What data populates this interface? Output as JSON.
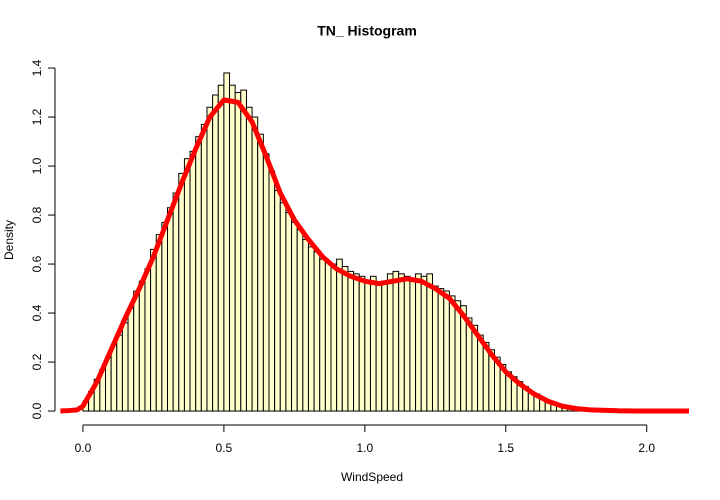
{
  "chart_data": {
    "type": "histogram",
    "title": "TN_ Histogram",
    "x_label": "WindSpeed",
    "y_label": "Density",
    "bins": [
      0,
      0.02,
      0.04,
      0.06,
      0.08,
      0.1,
      0.12,
      0.14,
      0.16,
      0.18,
      0.2,
      0.22,
      0.24,
      0.26,
      0.28,
      0.3,
      0.32,
      0.34,
      0.36,
      0.38,
      0.4,
      0.42,
      0.44,
      0.46,
      0.48,
      0.5,
      0.52,
      0.54,
      0.56,
      0.58,
      0.6,
      0.62,
      0.64,
      0.66,
      0.68,
      0.7,
      0.72,
      0.74,
      0.76,
      0.78,
      0.8,
      0.82,
      0.84,
      0.86,
      0.88,
      0.9,
      0.92,
      0.94,
      0.96,
      0.98,
      1,
      1.02,
      1.04,
      1.06,
      1.08,
      1.1,
      1.12,
      1.14,
      1.16,
      1.18,
      1.2,
      1.22,
      1.24,
      1.26,
      1.28,
      1.3,
      1.32,
      1.34,
      1.36,
      1.38,
      1.4,
      1.42,
      1.44,
      1.46,
      1.48,
      1.5,
      1.52,
      1.54,
      1.56,
      1.58,
      1.6,
      1.62,
      1.64,
      1.66,
      1.68,
      1.7,
      1.72,
      1.74,
      1.76,
      1.78,
      1.8
    ],
    "values": [
      0.04,
      0.08,
      0.13,
      0.17,
      0.22,
      0.27,
      0.31,
      0.36,
      0.42,
      0.49,
      0.53,
      0.58,
      0.66,
      0.72,
      0.77,
      0.83,
      0.89,
      0.97,
      1.03,
      1.06,
      1.12,
      1.17,
      1.24,
      1.29,
      1.33,
      1.38,
      1.33,
      1.3,
      1.31,
      1.24,
      1.2,
      1.13,
      1.05,
      0.98,
      0.9,
      0.85,
      0.81,
      0.77,
      0.74,
      0.7,
      0.67,
      0.65,
      0.62,
      0.61,
      0.6,
      0.62,
      0.59,
      0.57,
      0.56,
      0.55,
      0.53,
      0.55,
      0.52,
      0.53,
      0.56,
      0.57,
      0.56,
      0.55,
      0.54,
      0.56,
      0.55,
      0.56,
      0.51,
      0.5,
      0.49,
      0.47,
      0.45,
      0.43,
      0.38,
      0.35,
      0.31,
      0.28,
      0.25,
      0.22,
      0.19,
      0.16,
      0.14,
      0.12,
      0.1,
      0.08,
      0.07,
      0.05,
      0.04,
      0.03,
      0.02,
      0.02,
      0.01,
      0.01,
      0.005,
      0.003
    ],
    "color": "#ffffcc",
    "edge_color": "#000000",
    "density": {
      "color": "#ff0000",
      "x": [
        -0.08,
        -0.05,
        -0.02,
        0,
        0.05,
        0.1,
        0.15,
        0.2,
        0.25,
        0.3,
        0.35,
        0.4,
        0.45,
        0.5,
        0.55,
        0.6,
        0.65,
        0.7,
        0.75,
        0.8,
        0.85,
        0.9,
        0.95,
        1,
        1.05,
        1.1,
        1.15,
        1.2,
        1.25,
        1.3,
        1.35,
        1.4,
        1.45,
        1.5,
        1.55,
        1.6,
        1.65,
        1.7,
        1.75,
        1.8,
        1.9,
        2,
        2.15
      ],
      "values": [
        0,
        0.002,
        0.005,
        0.02,
        0.12,
        0.25,
        0.38,
        0.5,
        0.63,
        0.78,
        0.93,
        1.07,
        1.2,
        1.27,
        1.26,
        1.18,
        1.04,
        0.89,
        0.78,
        0.7,
        0.63,
        0.58,
        0.55,
        0.53,
        0.52,
        0.53,
        0.54,
        0.53,
        0.5,
        0.46,
        0.39,
        0.31,
        0.23,
        0.16,
        0.11,
        0.07,
        0.04,
        0.02,
        0.01,
        0.005,
        0.001,
        0,
        0
      ]
    },
    "xlim": [
      -0.08,
      2.15
    ],
    "ylim": [
      -0.05,
      1.45
    ],
    "xticks": [
      {
        "value": 0,
        "label": "0.0"
      },
      {
        "value": 0.5,
        "label": "0.5"
      },
      {
        "value": 1,
        "label": "1.0"
      },
      {
        "value": 1.5,
        "label": "1.5"
      },
      {
        "value": 2,
        "label": "2.0"
      }
    ],
    "yticks": [
      {
        "value": 0,
        "label": "0.0"
      },
      {
        "value": 0.2,
        "label": "0.2"
      },
      {
        "value": 0.4,
        "label": "0.4"
      },
      {
        "value": 0.6,
        "label": "0.6"
      },
      {
        "value": 0.8,
        "label": "0.8"
      },
      {
        "value": 1,
        "label": "1.0"
      },
      {
        "value": 1.2,
        "label": "1.2"
      },
      {
        "value": 1.4,
        "label": "1.4"
      }
    ]
  }
}
